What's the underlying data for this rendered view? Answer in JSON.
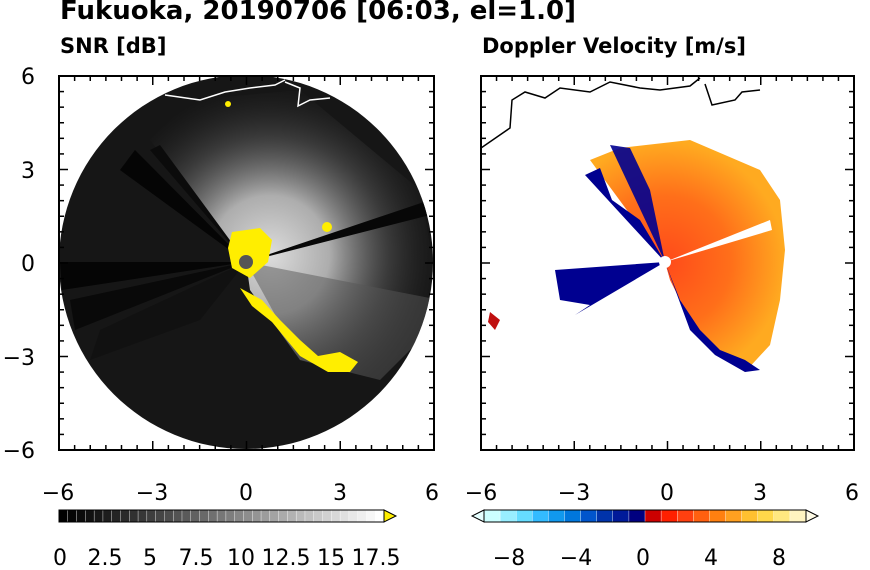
{
  "title": "Fukuoka, 20190706 [06:03, el=1.0]",
  "chart_data": [
    {
      "type": "heatmap",
      "title": "SNR [dB]",
      "quantity": "SNR",
      "units": "dB",
      "xlim": [
        -6,
        6
      ],
      "ylim": [
        -6,
        6
      ],
      "xticks": [
        "−6",
        "−3",
        "0",
        "3",
        "6"
      ],
      "yticks": [
        "6",
        "3",
        "0",
        "−3",
        "−6"
      ],
      "grid": false,
      "colorbar": {
        "min": 0,
        "max": 18.5,
        "step": 0.5,
        "extend": "max",
        "tick_labels": [
          "0",
          "2.5",
          "5",
          "7.5",
          "10",
          "12.5",
          "15",
          "17.5"
        ],
        "colors": {
          "low": "#000000",
          "high": "#ffffff",
          "over": "#ffee00"
        }
      }
    },
    {
      "type": "heatmap",
      "title": "Doppler Velocity [m/s]",
      "quantity": "Doppler Velocity",
      "units": "m/s",
      "xlim": [
        -6,
        6
      ],
      "ylim": [
        -6,
        6
      ],
      "xticks": [
        "−6",
        "−3",
        "0",
        "3",
        "6"
      ],
      "yticks": [],
      "grid": false,
      "colorbar": {
        "min": -10,
        "max": 10,
        "step": 1,
        "extend": "both",
        "tick_labels": [
          "−8",
          "−4",
          "0",
          "4",
          "8"
        ],
        "colors": {
          "negative": "#000080",
          "positive": "#ff2000"
        }
      }
    }
  ]
}
